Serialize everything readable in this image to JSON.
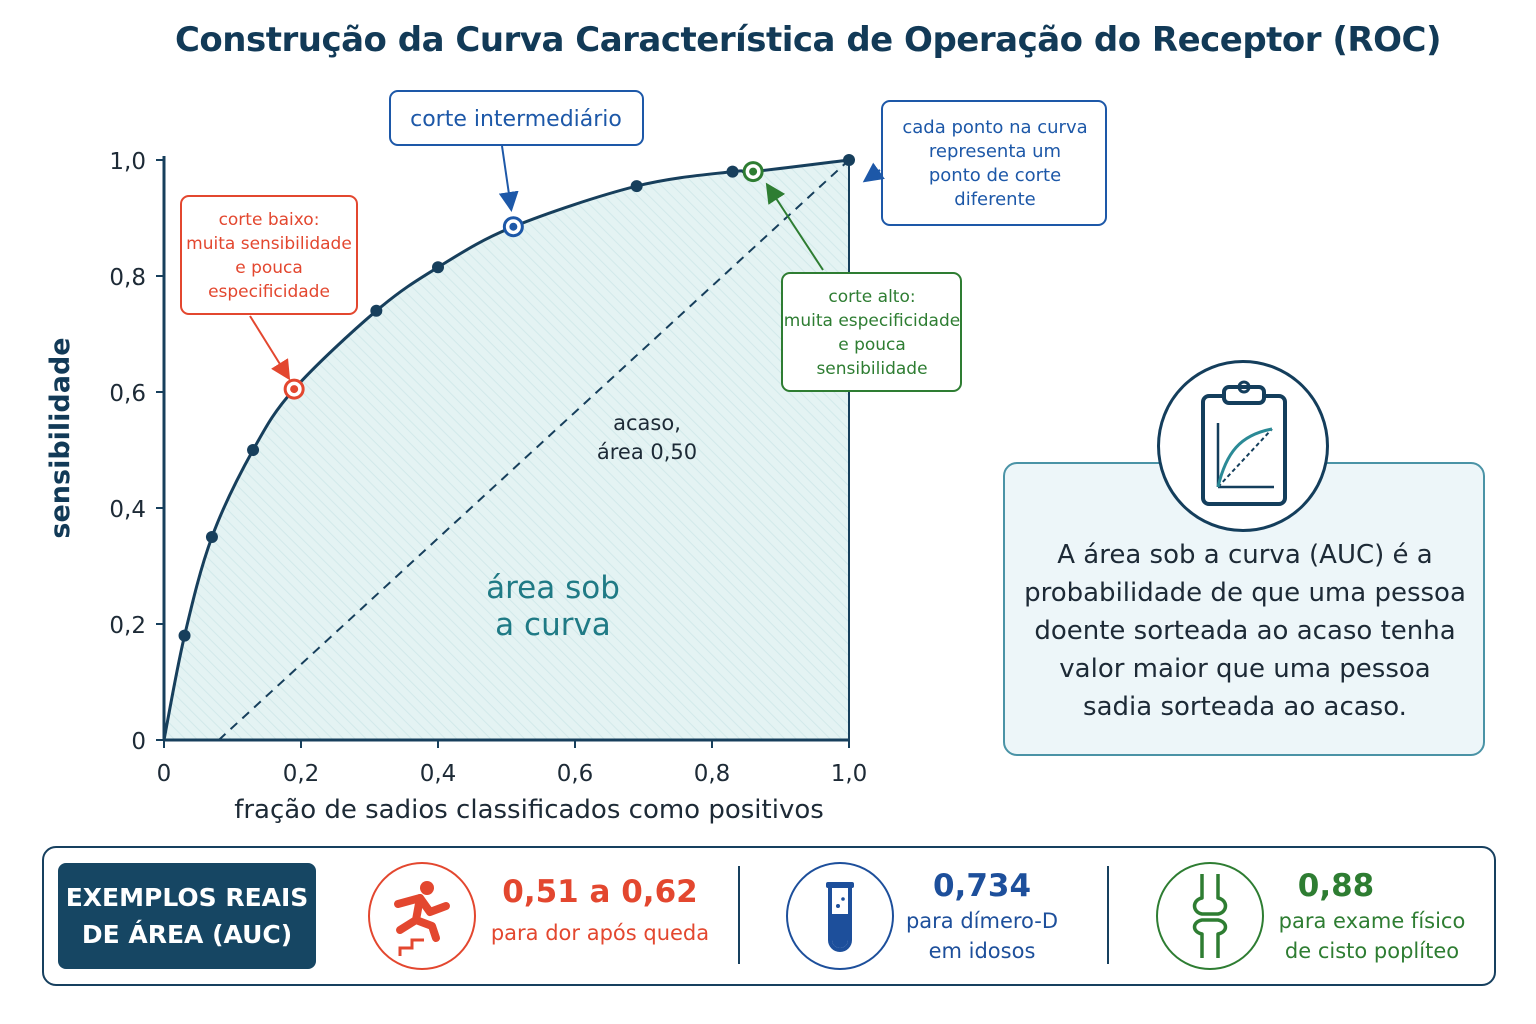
{
  "title": "Construção da Curva Característica de Operação do Receptor (ROC)",
  "chart_data": {
    "type": "line",
    "xlabel": "fração de sadios classificados como positivos",
    "ylabel": "sensibilidade",
    "xlim": [
      0,
      1
    ],
    "ylim": [
      0,
      1
    ],
    "x_ticks": [
      "0",
      "0,2",
      "0,4",
      "0,6",
      "0,8",
      "1,0"
    ],
    "y_ticks": [
      "0",
      "0,2",
      "0,4",
      "0,6",
      "0,8",
      "1,0"
    ],
    "series": [
      {
        "values_x": [
          0,
          0.03,
          0.07,
          0.13,
          0.19,
          0.31,
          0.4,
          0.51,
          0.69,
          0.83,
          0.86,
          1.0
        ],
        "values_y": [
          0,
          0.18,
          0.35,
          0.5,
          0.605,
          0.74,
          0.815,
          0.885,
          0.955,
          0.98,
          0.98,
          1.0
        ]
      },
      {
        "values_x": [
          0.08,
          1.0
        ],
        "values_y": [
          0,
          1.0
        ],
        "style": "dashed"
      }
    ],
    "highlighted_points": [
      {
        "x": 0.19,
        "y": 0.605,
        "color": "#e3472f"
      },
      {
        "x": 0.51,
        "y": 0.885,
        "color": "#1d58a8"
      },
      {
        "x": 0.86,
        "y": 0.98,
        "color": "#2e7d32"
      }
    ],
    "annotations": {
      "chance_line": [
        "acaso,",
        "área 0,50"
      ],
      "area_label": [
        "área sob",
        "a curva"
      ],
      "low_cut": [
        "corte baixo:",
        "muita sensibilidade",
        "e pouca",
        "especificidade"
      ],
      "mid_cut": [
        "corte intermediário"
      ],
      "high_cut": [
        "corte alto:",
        "muita especificidade",
        "e pouca",
        "sensibilidade"
      ],
      "each_point": [
        "cada ponto na curva",
        "representa um",
        "ponto de corte",
        "diferente"
      ]
    },
    "grid": false,
    "legend": "none"
  },
  "auc_explanation": "A área sob a curva (AUC) é a probabilidade de que uma pessoa doente sorteada ao acaso tenha valor maior que uma pessoa sadia sorteada ao acaso.",
  "examples": {
    "badge_line1": "EXEMPLOS REAIS",
    "badge_line2": "DE ÁREA (AUC)",
    "items": [
      {
        "value": "0,51 a 0,62",
        "desc1": "para dor após queda",
        "desc2": "",
        "color": "#e3472f",
        "icon": "person-falling-icon"
      },
      {
        "value": "0,734",
        "desc1": "para dímero-D",
        "desc2": "em idosos",
        "color": "#1d4f9b",
        "icon": "test-tube-icon"
      },
      {
        "value": "0,88",
        "desc1": "para exame físico",
        "desc2": "de cisto poplíteo",
        "color": "#2e7d32",
        "icon": "knee-joint-icon"
      }
    ]
  },
  "colors": {
    "navy": "#123a57",
    "curve": "#173f5c",
    "area_fill": "#e4f3f3",
    "teal_text": "#1f7a85",
    "red": "#e3472f",
    "blue": "#1d58a8",
    "green": "#2e7d32"
  }
}
